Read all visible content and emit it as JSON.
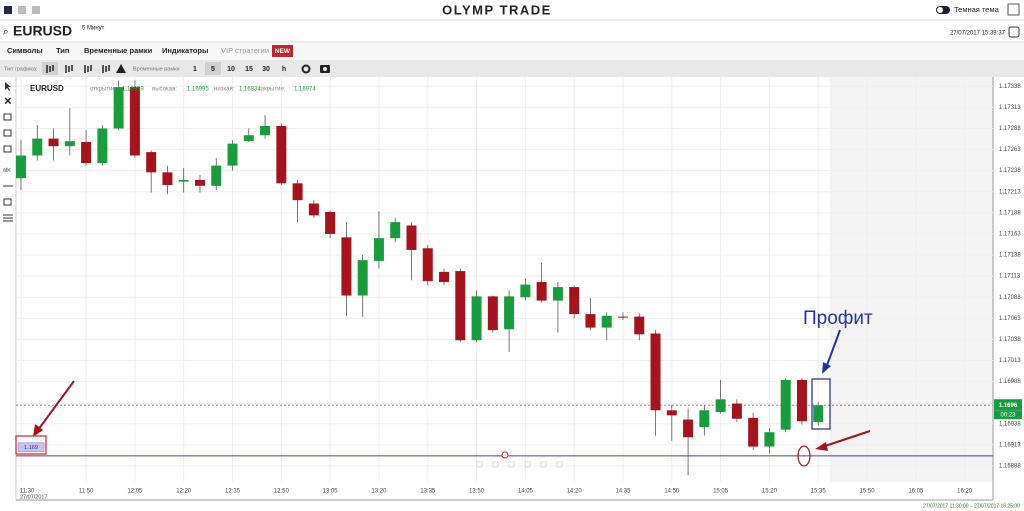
{
  "header": {
    "logo": "OLYMP TRADE",
    "theme": "Темная тема"
  },
  "instrument": {
    "symbol": "EURUSD",
    "timeframe": "5 Минут",
    "datetime": "27/07/2017 15:39:37"
  },
  "menu": [
    "Символы",
    "Тип",
    "Временные рамки",
    "Индикаторы",
    "VIP стратегии"
  ],
  "menu_badge": "NEW",
  "toolbar": {
    "chart_type_label": "Тип графика:",
    "timeframes_label": "Временные рамки",
    "timeframes": [
      "1",
      "5",
      "10",
      "15",
      "30",
      "h"
    ]
  },
  "chart_data": {
    "type": "candlestick",
    "title": "EURUSD",
    "info": [
      {
        "name": "открытие:",
        "value": 1.16939
      },
      {
        "name": "высокая:",
        "value": 1.16995
      },
      {
        "name": "низкая:",
        "value": 1.16934
      },
      {
        "name": "закрытие:",
        "value": 1.16974
      }
    ],
    "up_color": "#1a9c3e",
    "down_color": "#a3141c",
    "open": [
      1.17229,
      1.17256,
      1.17276,
      1.17267,
      1.17272,
      1.17247,
      1.17288,
      1.17337,
      1.1726,
      1.17236,
      1.17225,
      1.17227,
      1.1722,
      1.17244,
      1.17273,
      1.1728,
      1.17291,
      1.17223,
      1.17199,
      1.17189,
      1.17159,
      1.1709,
      1.17131,
      1.17158,
      1.17173,
      1.17146,
      1.17118,
      1.17119,
      1.17037,
      1.17089,
      1.1705,
      1.17088,
      1.17106,
      1.17084,
      1.171,
      1.17068,
      1.17052,
      1.17065,
      1.17065,
      1.17045,
      1.16954,
      1.16943,
      1.16934,
      1.16952,
      1.16962,
      1.16945,
      1.16911,
      1.16931,
      1.1699,
      1.1694
    ],
    "high": [
      1.17274,
      1.17292,
      1.17288,
      1.17312,
      1.17286,
      1.17292,
      1.17345,
      1.17345,
      1.17262,
      1.17244,
      1.17241,
      1.17233,
      1.17253,
      1.17274,
      1.17288,
      1.17304,
      1.17294,
      1.17227,
      1.17203,
      1.17191,
      1.17177,
      1.17138,
      1.1719,
      1.17182,
      1.17177,
      1.1715,
      1.17122,
      1.17122,
      1.17096,
      1.1709,
      1.17096,
      1.1711,
      1.17129,
      1.17106,
      1.17102,
      1.17087,
      1.1707,
      1.1707,
      1.17069,
      1.17049,
      1.1696,
      1.16956,
      1.1696,
      1.1699,
      1.16967,
      1.16951,
      1.16933,
      1.16992,
      1.16992,
      1.16964
    ],
    "low": [
      1.17215,
      1.1725,
      1.1725,
      1.17256,
      1.17244,
      1.17244,
      1.17286,
      1.17253,
      1.17212,
      1.1721,
      1.17212,
      1.17212,
      1.17215,
      1.17238,
      1.17272,
      1.17276,
      1.17221,
      1.17177,
      1.17182,
      1.17158,
      1.17066,
      1.17065,
      1.17122,
      1.17153,
      1.17108,
      1.17102,
      1.17102,
      1.17035,
      1.17035,
      1.17046,
      1.17023,
      1.17084,
      1.17082,
      1.17046,
      1.17063,
      1.17049,
      1.17037,
      1.17061,
      1.17037,
      1.16924,
      1.16918,
      1.16877,
      1.16924,
      1.1695,
      1.1694,
      1.16907,
      1.16903,
      1.16928,
      1.16937,
      1.16936
    ],
    "close": [
      1.17256,
      1.17276,
      1.17267,
      1.17273,
      1.17247,
      1.17288,
      1.17337,
      1.17256,
      1.17236,
      1.17221,
      1.17227,
      1.1722,
      1.17244,
      1.1727,
      1.1728,
      1.17291,
      1.17223,
      1.17203,
      1.17185,
      1.17163,
      1.1709,
      1.17132,
      1.17158,
      1.17177,
      1.17144,
      1.17107,
      1.17106,
      1.17037,
      1.17089,
      1.17049,
      1.17089,
      1.17103,
      1.17084,
      1.171,
      1.17068,
      1.17052,
      1.17066,
      1.17064,
      1.17044,
      1.16954,
      1.16948,
      1.16922,
      1.16954,
      1.16967,
      1.16944,
      1.16911,
      1.16928,
      1.1699,
      1.16941,
      1.1696
    ],
    "ylim": [
      1.16869,
      1.17349
    ],
    "yticks": [
      1.17338,
      1.17313,
      1.17288,
      1.17263,
      1.17238,
      1.17213,
      1.17188,
      1.17163,
      1.17138,
      1.17113,
      1.17088,
      1.17063,
      1.17038,
      1.17013,
      1.16988,
      1.16938,
      1.16913,
      1.16888
    ],
    "xticks": [
      "11:30",
      "11:50",
      "12:05",
      "12:20",
      "12:35",
      "12:50",
      "13:05",
      "13:20",
      "13:35",
      "13:50",
      "14:05",
      "14:20",
      "14:35",
      "14:50",
      "15:05",
      "15:20",
      "15:35",
      "15:50",
      "16:05",
      "16:20"
    ],
    "date": "27/07/2017",
    "range": "27/07/2017 11:30:00 – 27/07/2017 16:25:00",
    "grid": true,
    "current_price": 1.1696,
    "timer": "00:23",
    "level": 1.169,
    "annotation": "Профит"
  }
}
